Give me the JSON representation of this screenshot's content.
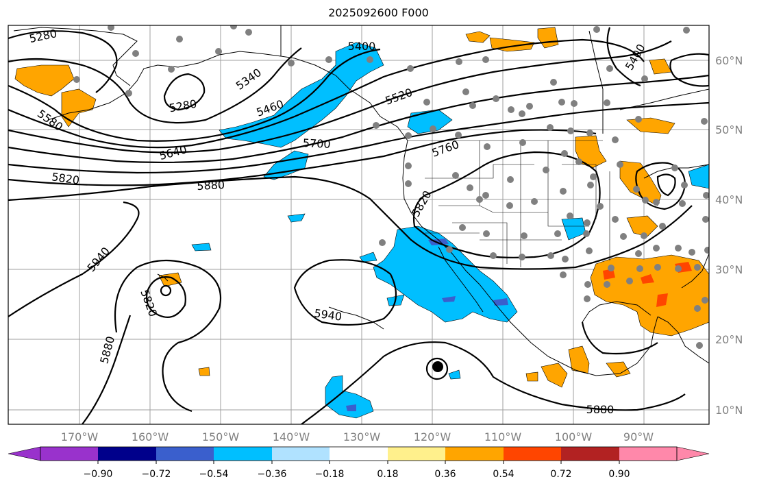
{
  "title": "2025092600 F000",
  "lon_labels": [
    "170°W",
    "160°W",
    "150°W",
    "140°W",
    "130°W",
    "120°W",
    "110°W",
    "100°W",
    "90°W"
  ],
  "lat_labels": [
    "60°N",
    "50°N",
    "40°N",
    "30°N",
    "20°N",
    "10°N"
  ],
  "contour_labels": [
    "5280",
    "5340",
    "5280",
    "5400",
    "5460",
    "5520",
    "5400",
    "5580",
    "5640",
    "5700",
    "5760",
    "5820",
    "5880",
    "5820",
    "5940",
    "5820",
    "5940",
    "5880",
    "5880"
  ],
  "colorbar": {
    "colors": [
      "#9932cc",
      "#00008b",
      "#3a5fcd",
      "#00bfff",
      "#b0e2ff",
      "#ffffff",
      "#fff08c",
      "#ffa500",
      "#ff4500",
      "#b22222",
      "#ff88aa"
    ],
    "tick_labels": [
      "−0.90",
      "−0.72",
      "−0.54",
      "−0.36",
      "−0.18",
      "0.18",
      "0.36",
      "0.54",
      "0.72",
      "0.90"
    ]
  },
  "colors": {
    "positive_fill": "#ffa500",
    "negative_fill": "#00bfff",
    "grid": "#888888",
    "station": "#808080"
  }
}
